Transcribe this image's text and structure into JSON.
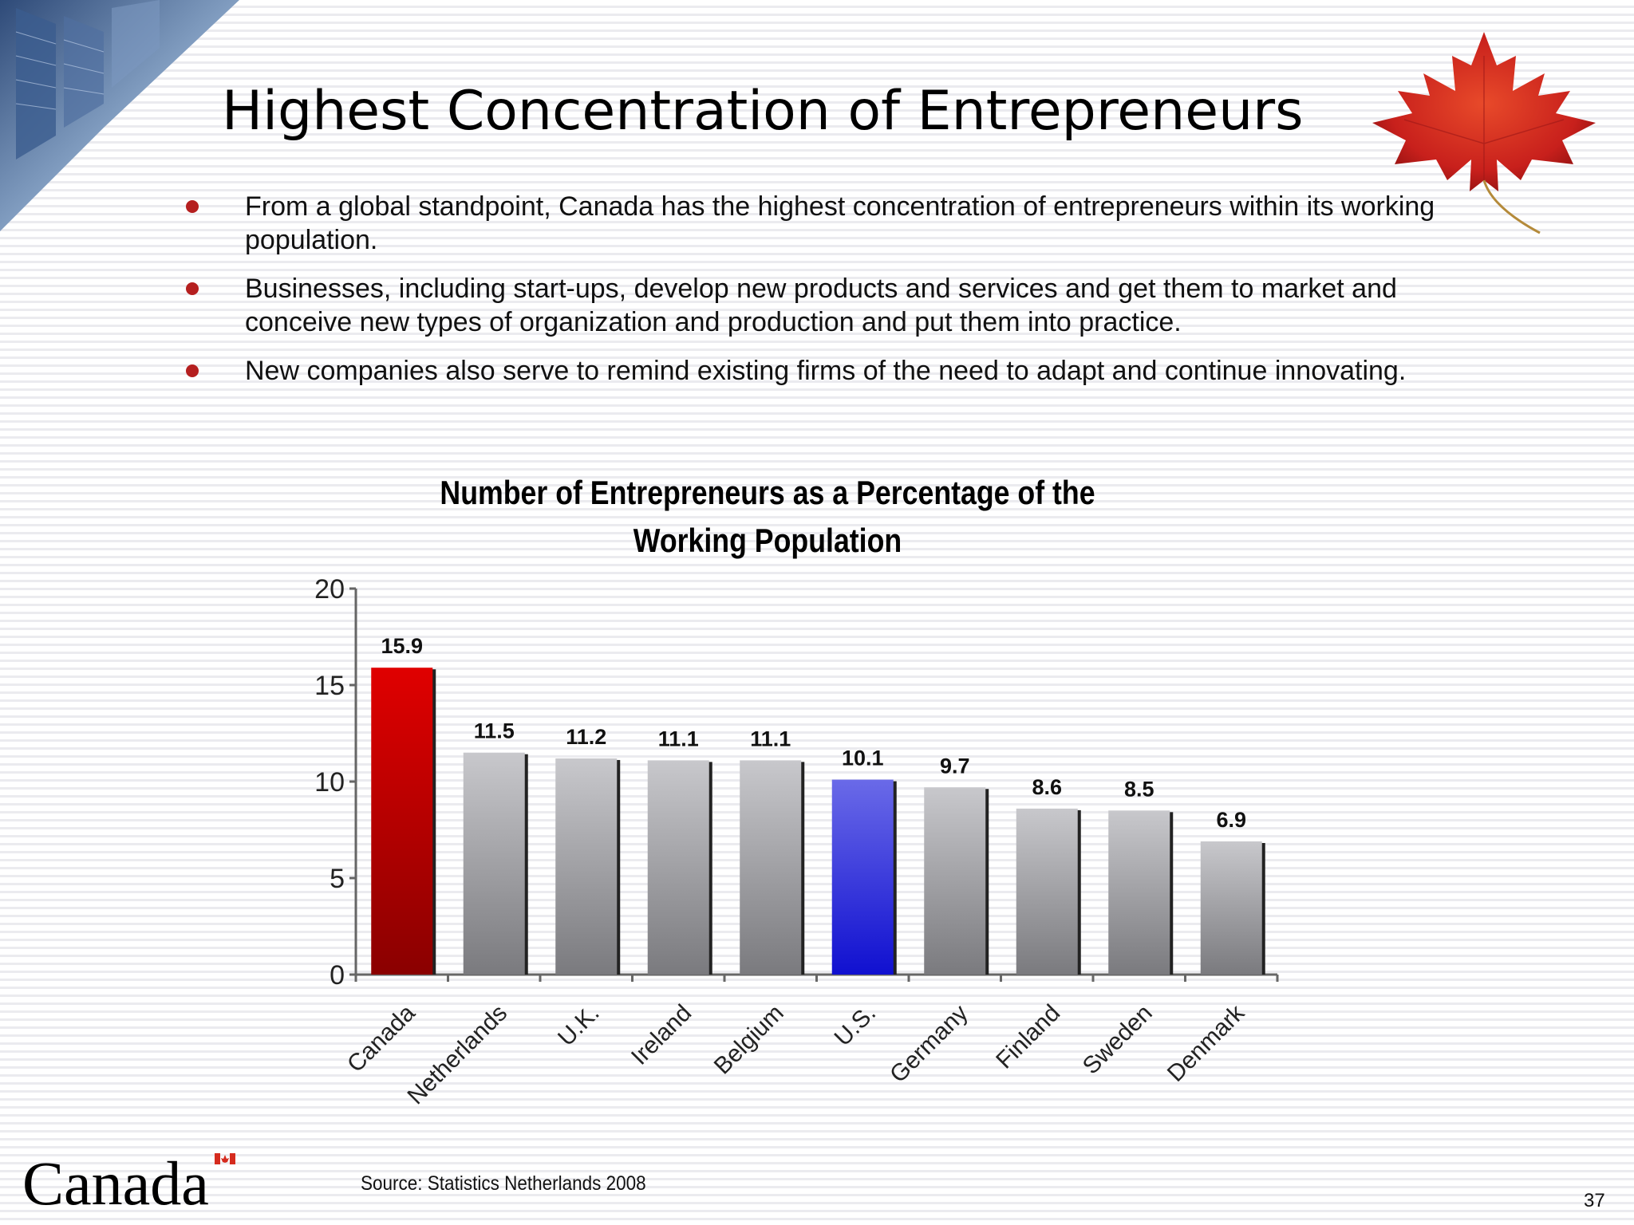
{
  "slide": {
    "title": "Highest Concentration of Entrepreneurs",
    "bullets": [
      "From a global standpoint, Canada has the highest concentration of entrepreneurs within its working population.",
      "Businesses, including  start-ups, develop new products and services and get them to market and conceive new types of organization and production and put them into  practice.",
      "New companies also serve to remind existing firms of the need to adapt and continue innovating."
    ],
    "source": "Source: Statistics Netherlands 2008",
    "page_number": "37",
    "wordmark": "Canada",
    "bullet_color": "#b51f1f"
  },
  "chart_data": {
    "type": "bar",
    "title_lines": [
      "Number of Entrepreneurs as a Percentage of the",
      "Working Population"
    ],
    "categories": [
      "Canada",
      "Netherlands",
      "U.K.",
      "Ireland",
      "Belgium",
      "U.S.",
      "Germany",
      "Finland",
      "Sweden",
      "Denmark"
    ],
    "values": [
      15.9,
      11.5,
      11.2,
      11.1,
      11.1,
      10.1,
      9.7,
      8.6,
      8.5,
      6.9
    ],
    "value_labels": [
      "15.9",
      "11.5",
      "11.2",
      "11.1",
      "11.1",
      "10.1",
      "9.7",
      "8.6",
      "8.5",
      "6.9"
    ],
    "ylim": [
      0,
      20
    ],
    "yticks": [
      0,
      5,
      10,
      15,
      20
    ],
    "ytick_labels": [
      "0",
      "5",
      "10",
      "15",
      "20"
    ],
    "grid": false,
    "legend": "none",
    "colors": {
      "default": [
        "#c8c8cc",
        "#7a7a7e"
      ],
      "Canada": [
        "#e00000",
        "#8a0000"
      ],
      "U.S.": [
        "#6a6ae8",
        "#1010d0"
      ]
    }
  }
}
